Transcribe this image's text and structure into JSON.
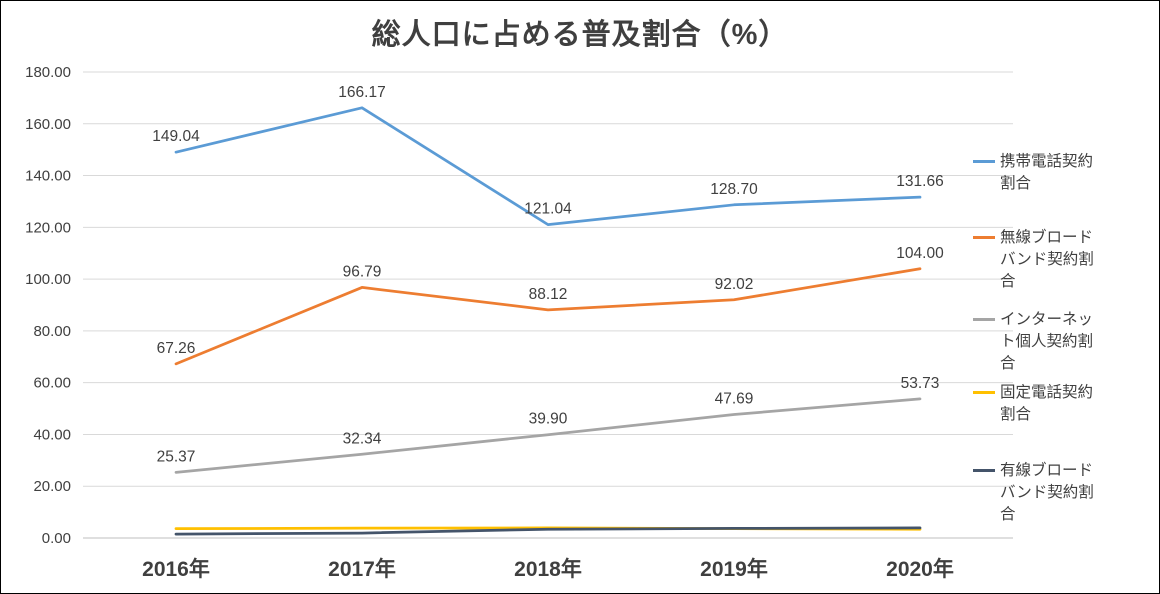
{
  "chart_data": {
    "type": "line",
    "title": "総人口に占める普及割合（%）",
    "categories": [
      "2016年",
      "2017年",
      "2018年",
      "2019年",
      "2020年"
    ],
    "ylim": [
      0,
      180
    ],
    "ytick_step": 20,
    "ytick_labels": [
      "0.00",
      "20.00",
      "40.00",
      "60.00",
      "80.00",
      "100.00",
      "120.00",
      "140.00",
      "160.00",
      "180.00"
    ],
    "grid": true,
    "legend_position": "right",
    "series": [
      {
        "name": "携帯電話契約割合",
        "color": "#5B9BD5",
        "values": [
          149.04,
          166.17,
          121.04,
          128.7,
          131.66
        ],
        "labels": [
          "149.04",
          "166.17",
          "121.04",
          "128.70",
          "131.66"
        ]
      },
      {
        "name": "無線ブロードバンド契約割合",
        "color": "#ED7D31",
        "values": [
          67.26,
          96.79,
          88.12,
          92.02,
          104.0
        ],
        "labels": [
          "67.26",
          "96.79",
          "88.12",
          "92.02",
          "104.00"
        ]
      },
      {
        "name": "インターネット個人契約割合",
        "color": "#A5A5A5",
        "values": [
          25.37,
          32.34,
          39.9,
          47.69,
          53.73
        ],
        "labels": [
          "25.37",
          "32.34",
          "39.90",
          "47.69",
          "53.73"
        ]
      },
      {
        "name": "固定電話契約割合",
        "color": "#FFC000",
        "values": [
          3.6,
          3.8,
          3.9,
          3.6,
          3.4
        ],
        "labels": null
      },
      {
        "name": "有線ブロードバンド契約割合",
        "color": "#44546A",
        "values": [
          1.5,
          1.9,
          3.4,
          3.7,
          3.9
        ],
        "labels": null
      }
    ]
  }
}
